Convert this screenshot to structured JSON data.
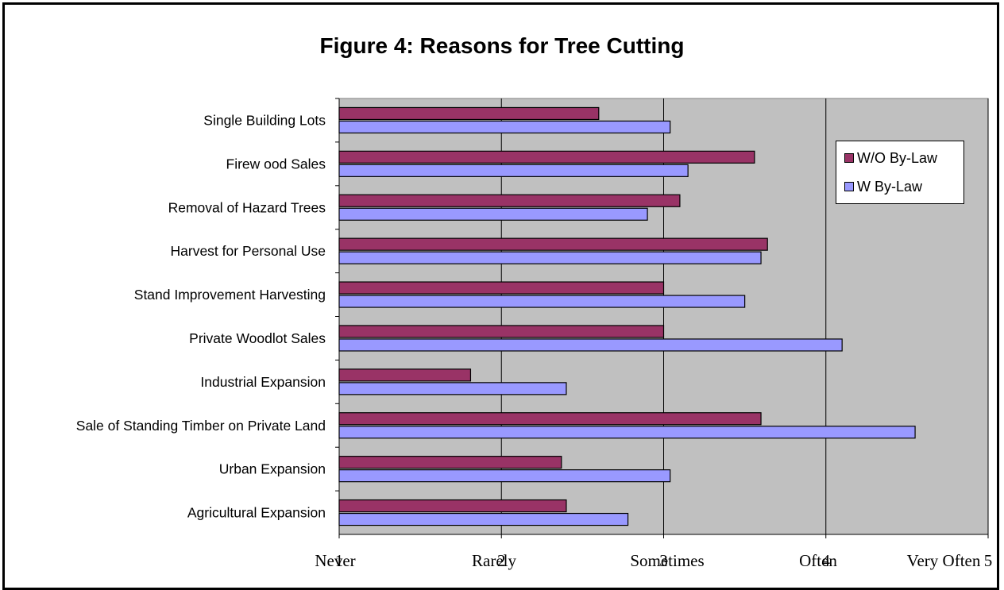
{
  "chart_data": {
    "type": "bar",
    "orientation": "horizontal",
    "title": "Figure 4: Reasons for Tree Cutting",
    "categories": [
      "Single Building Lots",
      "Firew ood Sales",
      "Removal of Hazard Trees",
      "Harvest for Personal Use",
      "Stand Improvement Harvesting",
      "Private Woodlot Sales",
      "Industrial Expansion",
      "Sale of Standing Timber on Private Land",
      "Urban Expansion",
      "Agricultural Expansion"
    ],
    "series": [
      {
        "name": "W/O By-Law",
        "color": "#993366",
        "values": [
          2.6,
          3.56,
          3.1,
          3.64,
          3.0,
          3.0,
          1.81,
          3.6,
          2.37,
          2.4
        ]
      },
      {
        "name": "W By-Law",
        "color": "#9999ff",
        "values": [
          3.04,
          3.15,
          2.9,
          3.6,
          3.5,
          4.1,
          2.4,
          4.55,
          3.04,
          2.78
        ]
      }
    ],
    "xlim": [
      1,
      5
    ],
    "xticks": [
      1,
      2,
      3,
      4,
      5
    ],
    "xtick_labels": [
      "Never",
      "Rarely",
      "Sometimes",
      "Often",
      "Very Often"
    ],
    "grid": true,
    "plot_background": "#c0c0c0",
    "legend_position": "top-right"
  }
}
